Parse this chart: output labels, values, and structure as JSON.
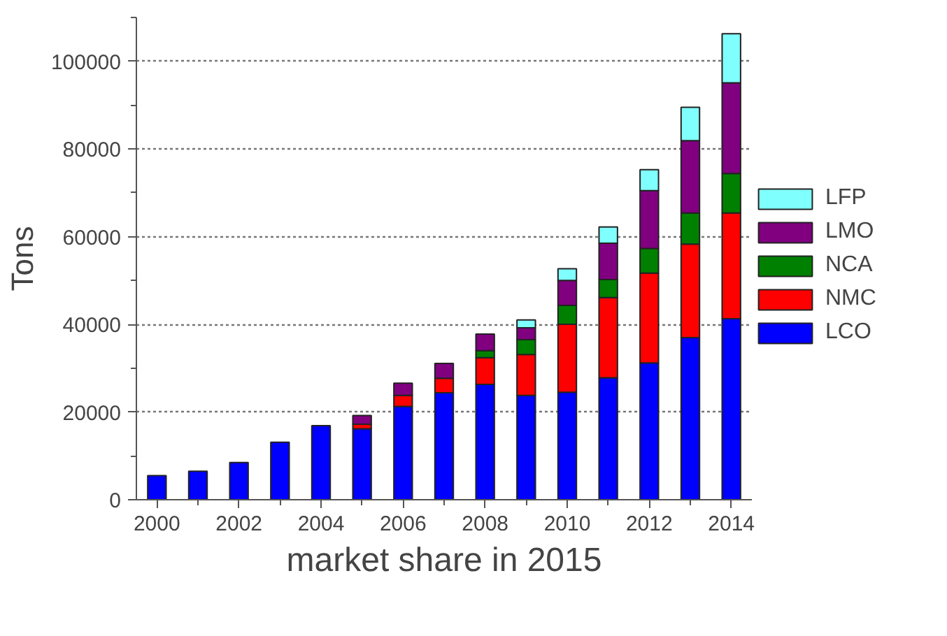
{
  "chart_data": {
    "type": "bar",
    "stacked": true,
    "xlabel": "market share in 2015",
    "ylabel": "Tons",
    "x": [
      2000,
      2001,
      2002,
      2003,
      2004,
      2005,
      2006,
      2007,
      2008,
      2009,
      2010,
      2011,
      2012,
      2013,
      2014
    ],
    "xlim": [
      1999.5,
      2014.5
    ],
    "xticks": [
      2000,
      2002,
      2004,
      2006,
      2008,
      2010,
      2012,
      2014
    ],
    "ylim": [
      0,
      110000
    ],
    "yticks": [
      0,
      20000,
      40000,
      60000,
      80000,
      100000
    ],
    "grid": "y",
    "legend": "right",
    "series": [
      {
        "name": "LCO",
        "color": "#0000ff",
        "values": [
          5500,
          6500,
          8500,
          13100,
          16900,
          16200,
          21300,
          24400,
          26300,
          23800,
          24500,
          27800,
          31200,
          37000,
          41300
        ]
      },
      {
        "name": "NMC",
        "color": "#ff0000",
        "values": [
          null,
          null,
          null,
          null,
          null,
          1000,
          2500,
          3300,
          6100,
          9300,
          15500,
          18300,
          20500,
          21300,
          24100
        ]
      },
      {
        "name": "NCA",
        "color": "#008000",
        "values": [
          null,
          null,
          null,
          null,
          null,
          null,
          null,
          null,
          1600,
          3400,
          4300,
          4100,
          5600,
          7100,
          9000
        ]
      },
      {
        "name": "LMO",
        "color": "#800080",
        "values": [
          null,
          null,
          null,
          null,
          null,
          2000,
          2800,
          3400,
          3800,
          2700,
          5700,
          8300,
          13200,
          16500,
          20700
        ]
      },
      {
        "name": "LFP",
        "color": "#80ffff",
        "values": [
          null,
          null,
          null,
          null,
          null,
          null,
          null,
          null,
          null,
          1800,
          2700,
          3700,
          4800,
          7600,
          11200
        ]
      }
    ]
  }
}
